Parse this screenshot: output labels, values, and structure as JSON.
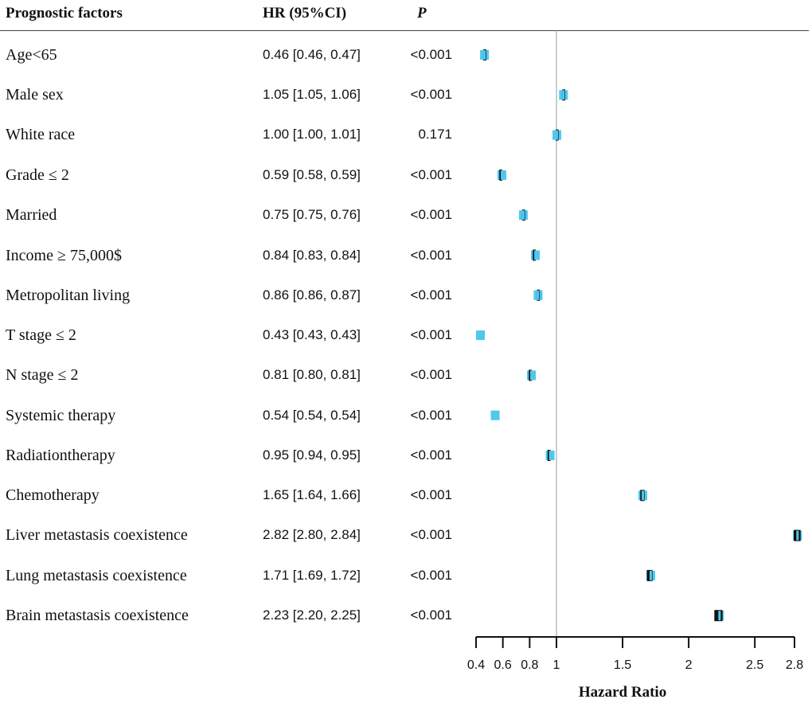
{
  "header": {
    "factor_label": "Prognostic factors",
    "hr_label": "HR (95%CI)",
    "p_label": "P"
  },
  "rows": [
    {
      "factor": "Age<65",
      "hr_text": "0.46 [0.46, 0.47]",
      "p": "<0.001"
    },
    {
      "factor": "Male sex",
      "hr_text": "1.05 [1.05, 1.06]",
      "p": "<0.001"
    },
    {
      "factor": "White race",
      "hr_text": "1.00 [1.00, 1.01]",
      "p": "0.171"
    },
    {
      "factor": "Grade ≤ 2",
      "hr_text": "0.59 [0.58, 0.59]",
      "p": "<0.001"
    },
    {
      "factor": "Married",
      "hr_text": "0.75 [0.75, 0.76]",
      "p": "<0.001"
    },
    {
      "factor": "Income ≥ 75,000$",
      "hr_text": "0.84 [0.83, 0.84]",
      "p": "<0.001"
    },
    {
      "factor": "Metropolitan living",
      "hr_text": "0.86 [0.86, 0.87]",
      "p": "<0.001"
    },
    {
      "factor": "T stage ≤ 2",
      "hr_text": "0.43 [0.43, 0.43]",
      "p": "<0.001"
    },
    {
      "factor": "N stage ≤ 2",
      "hr_text": "0.81 [0.80, 0.81]",
      "p": "<0.001"
    },
    {
      "factor": "Systemic therapy",
      "hr_text": "0.54 [0.54, 0.54]",
      "p": "<0.001"
    },
    {
      "factor": "Radiationtherapy",
      "hr_text": "0.95 [0.94, 0.95]",
      "p": "<0.001"
    },
    {
      "factor": "Chemotherapy",
      "hr_text": "1.65 [1.64, 1.66]",
      "p": "<0.001"
    },
    {
      "factor": "Liver metastasis coexistence",
      "hr_text": "2.82 [2.80, 2.84]",
      "p": "<0.001"
    },
    {
      "factor": "Lung metastasis coexistence",
      "hr_text": "1.71 [1.69, 1.72]",
      "p": "<0.001"
    },
    {
      "factor": "Brain metastasis coexistence",
      "hr_text": "2.23 [2.20, 2.25]",
      "p": "<0.001"
    }
  ],
  "chart_data": {
    "type": "forest",
    "xlabel": "Hazard Ratio",
    "xlim": [
      0.4,
      2.8
    ],
    "reference_line": 1,
    "ticks": [
      0.4,
      0.6,
      0.8,
      1,
      1.5,
      2,
      2.5,
      2.8
    ],
    "tick_labels": [
      "0.4",
      "0.6",
      "0.8",
      "1",
      "1.5",
      "2",
      "2.5",
      "2.8"
    ],
    "series": [
      {
        "name": "Age<65",
        "hr": 0.46,
        "lower": 0.46,
        "upper": 0.47
      },
      {
        "name": "Male sex",
        "hr": 1.05,
        "lower": 1.05,
        "upper": 1.06
      },
      {
        "name": "White race",
        "hr": 1.0,
        "lower": 1.0,
        "upper": 1.01
      },
      {
        "name": "Grade ≤ 2",
        "hr": 0.59,
        "lower": 0.58,
        "upper": 0.59
      },
      {
        "name": "Married",
        "hr": 0.75,
        "lower": 0.75,
        "upper": 0.76
      },
      {
        "name": "Income ≥ 75,000$",
        "hr": 0.84,
        "lower": 0.83,
        "upper": 0.84
      },
      {
        "name": "Metropolitan living",
        "hr": 0.86,
        "lower": 0.86,
        "upper": 0.87
      },
      {
        "name": "T stage ≤ 2",
        "hr": 0.43,
        "lower": 0.43,
        "upper": 0.43
      },
      {
        "name": "N stage ≤ 2",
        "hr": 0.81,
        "lower": 0.8,
        "upper": 0.81
      },
      {
        "name": "Systemic therapy",
        "hr": 0.54,
        "lower": 0.54,
        "upper": 0.54
      },
      {
        "name": "Radiationtherapy",
        "hr": 0.95,
        "lower": 0.94,
        "upper": 0.95
      },
      {
        "name": "Chemotherapy",
        "hr": 1.65,
        "lower": 1.64,
        "upper": 1.66
      },
      {
        "name": "Liver metastasis coexistence",
        "hr": 2.82,
        "lower": 2.8,
        "upper": 2.84
      },
      {
        "name": "Lung metastasis coexistence",
        "hr": 1.71,
        "lower": 1.69,
        "upper": 1.72
      },
      {
        "name": "Brain metastasis coexistence",
        "hr": 2.23,
        "lower": 2.2,
        "upper": 2.25
      }
    ],
    "colors": {
      "marker": "#4fc7ee",
      "ci": "#111111",
      "reference": "#999999",
      "axis": "#111111"
    }
  }
}
